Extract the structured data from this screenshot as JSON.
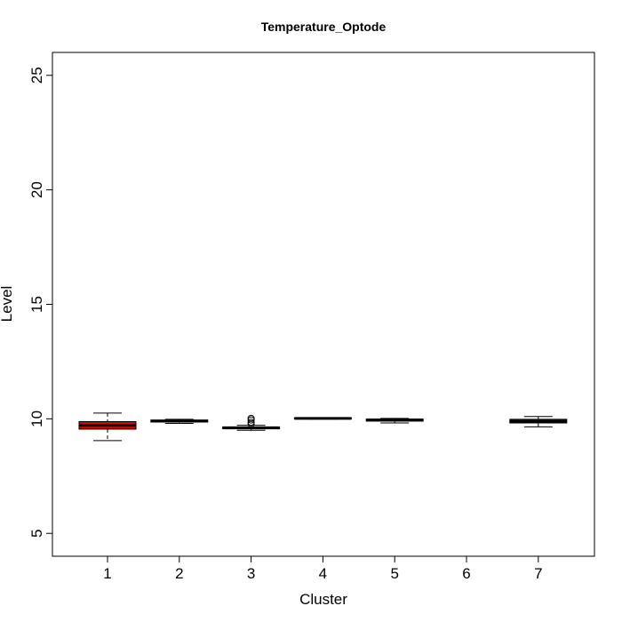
{
  "chart_data": {
    "type": "box",
    "title": "Temperature_Optode",
    "xlabel": "Cluster",
    "ylabel": "Level",
    "categories": [
      "1",
      "2",
      "3",
      "4",
      "5",
      "6",
      "7"
    ],
    "ylim": [
      4,
      26
    ],
    "yticks": [
      5,
      10,
      15,
      20,
      25
    ],
    "grid": false,
    "boxes": [
      {
        "cluster": "1",
        "min": 9.05,
        "q1": 9.55,
        "median": 9.72,
        "q3": 9.88,
        "max": 10.25,
        "outliers": [],
        "color": "#dd0000"
      },
      {
        "cluster": "2",
        "min": 9.8,
        "q1": 9.86,
        "median": 9.9,
        "q3": 9.95,
        "max": 9.98,
        "outliers": [],
        "color": "#00aa00"
      },
      {
        "cluster": "3",
        "min": 9.5,
        "q1": 9.57,
        "median": 9.6,
        "q3": 9.65,
        "max": 9.72,
        "outliers": [
          9.78,
          9.85,
          9.95,
          10.02
        ],
        "color": "#0000ee"
      },
      {
        "cluster": "4",
        "min": 9.99,
        "q1": 10.0,
        "median": 10.02,
        "q3": 10.04,
        "max": 10.05,
        "outliers": [],
        "color": "#00cccc"
      },
      {
        "cluster": "5",
        "min": 9.82,
        "q1": 9.9,
        "median": 9.95,
        "q3": 9.99,
        "max": 10.02,
        "outliers": [],
        "color": "#cc00cc"
      },
      {
        "cluster": "7",
        "min": 9.65,
        "q1": 9.82,
        "median": 9.9,
        "q3": 9.98,
        "max": 10.1,
        "outliers": [],
        "color": "#a0a0a0"
      }
    ]
  }
}
